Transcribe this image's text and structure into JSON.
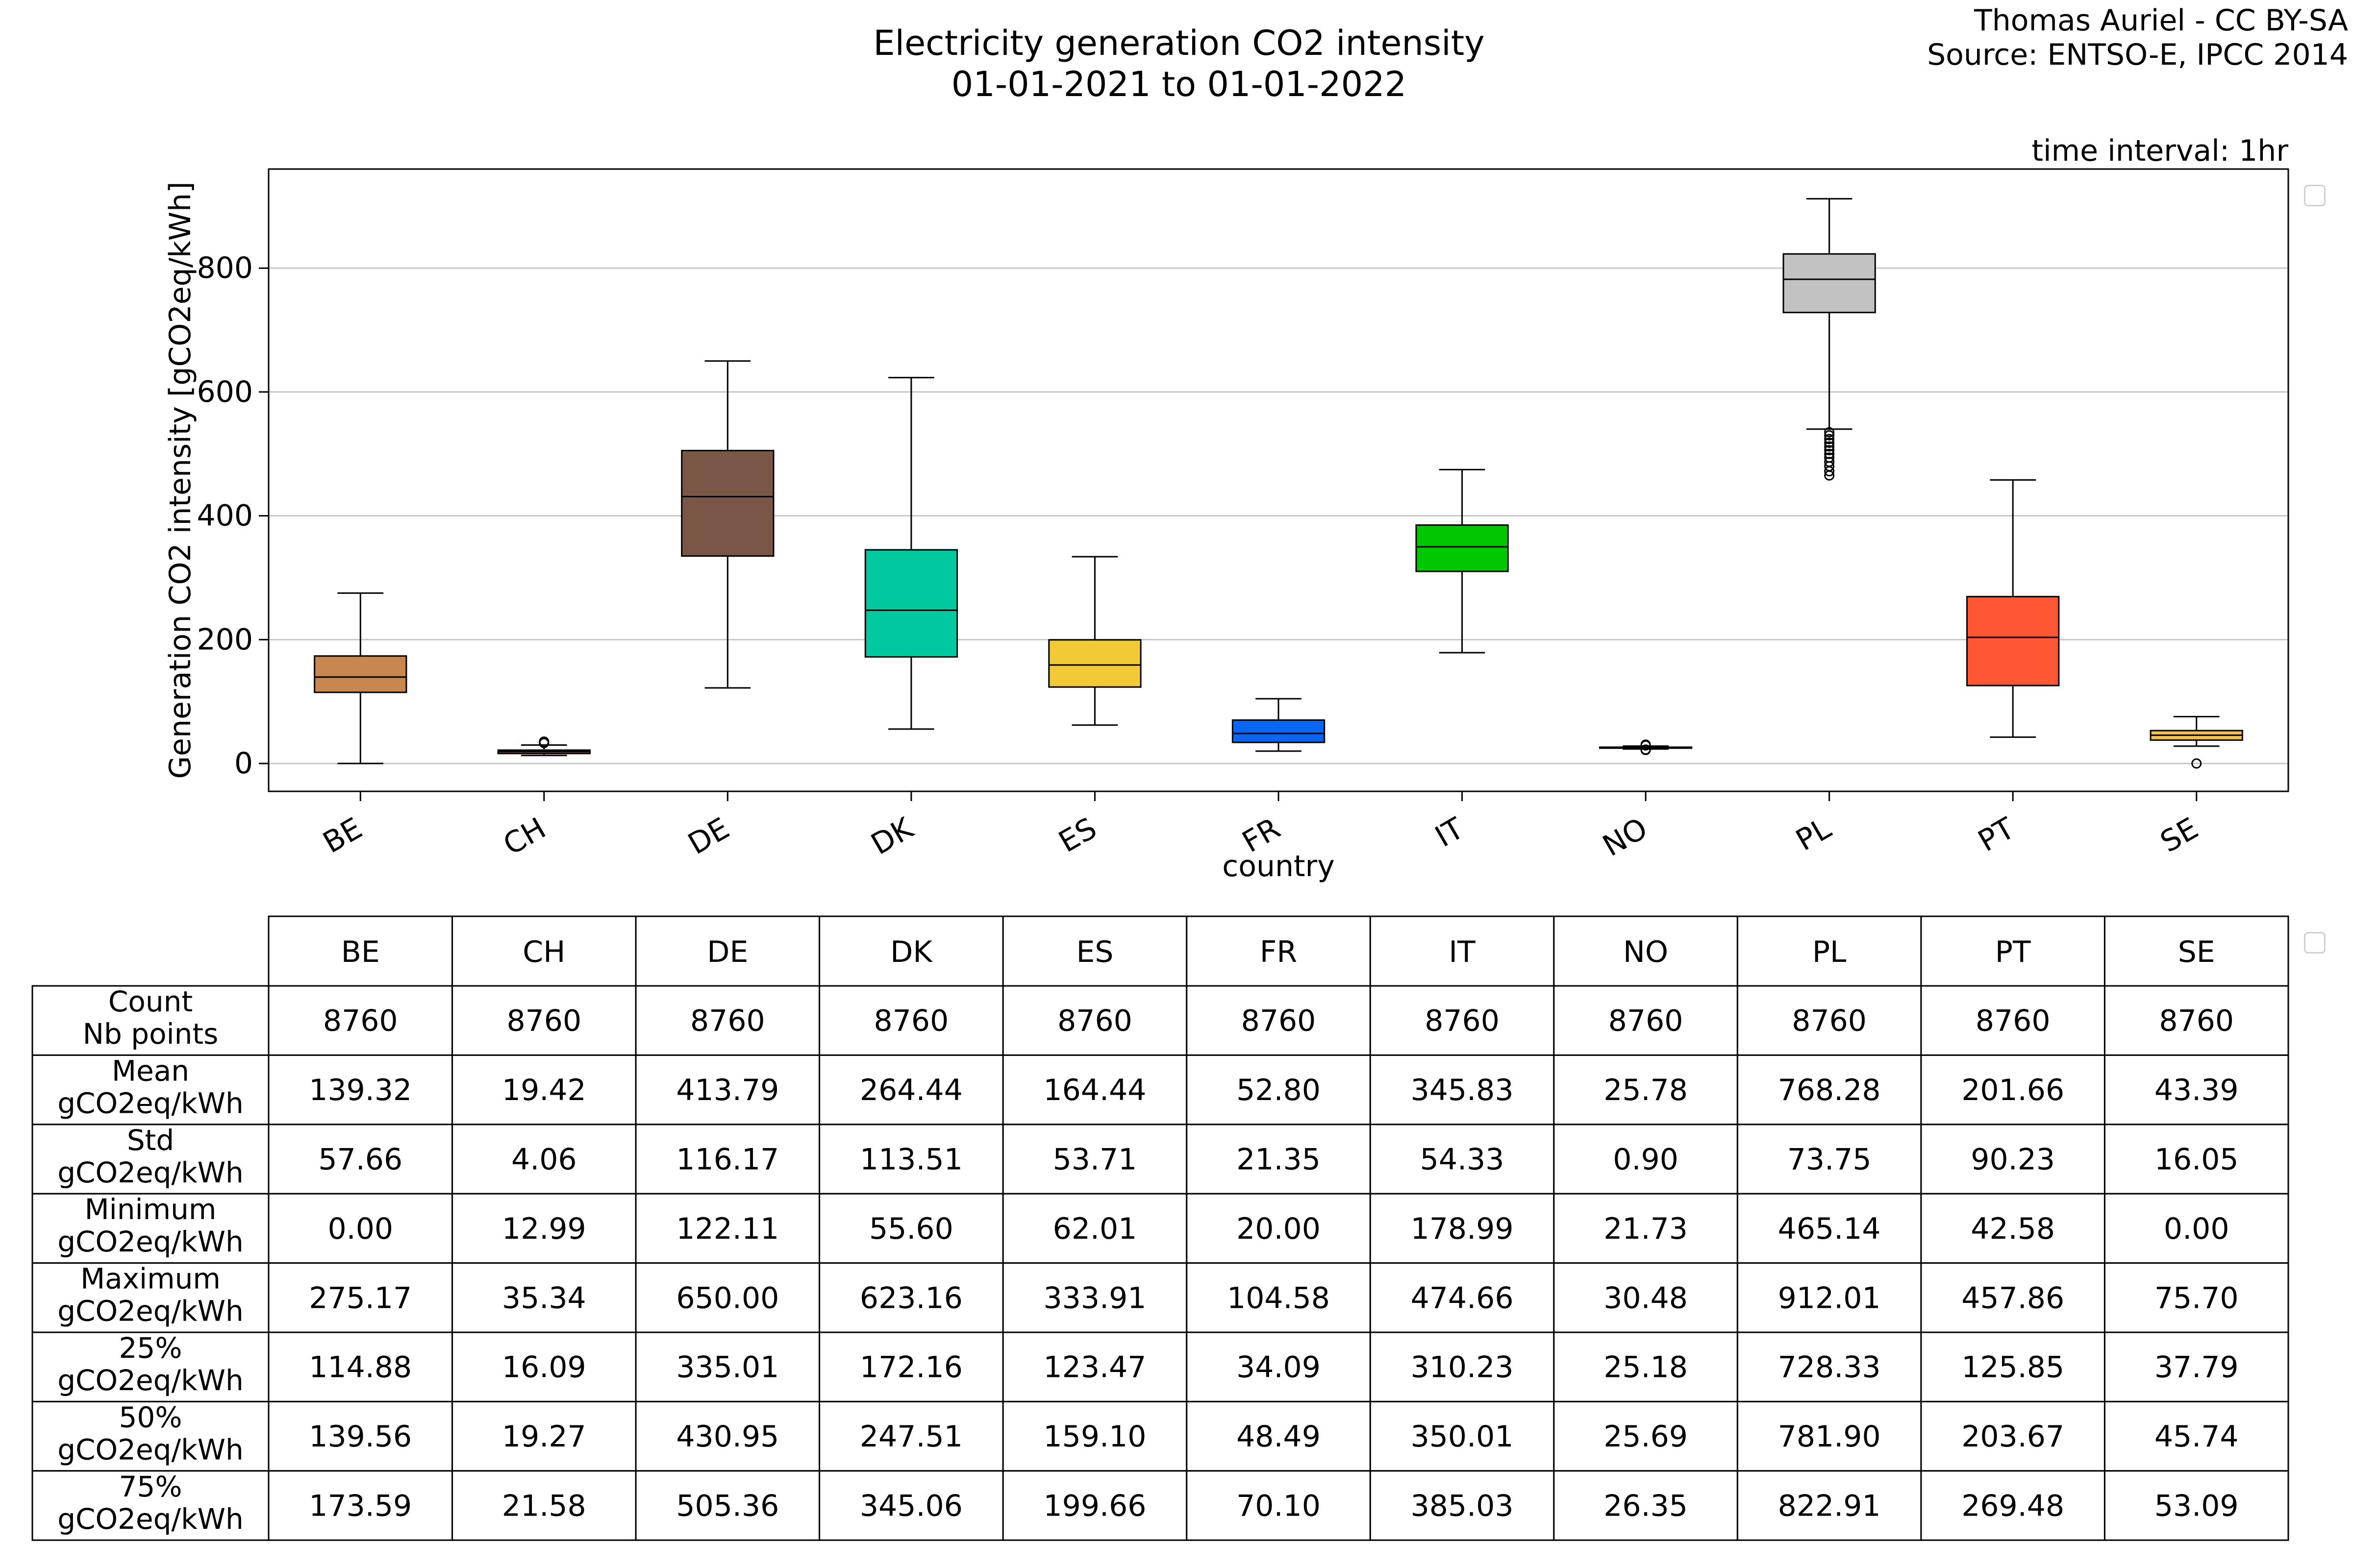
{
  "header": {
    "title_line1": "Electricity generation CO2 intensity",
    "title_line2": "01-01-2021 to 01-01-2022",
    "credit_line1": "Thomas Auriel - CC BY-SA",
    "credit_line2": "Source: ENTSO-E, IPCC 2014",
    "time_interval": "time interval: 1hr"
  },
  "chart_data": [
    {
      "type": "box",
      "xlabel": "country",
      "ylabel": "Generation CO2 intensity [gCO2eq/kWh]",
      "ylim": [
        -45,
        960
      ],
      "yticks": [
        0,
        200,
        400,
        600,
        800
      ],
      "grid": "horizontal",
      "categories": [
        "BE",
        "CH",
        "DE",
        "DK",
        "ES",
        "FR",
        "IT",
        "NO",
        "PL",
        "PT",
        "SE"
      ],
      "colors": [
        "#c8874f",
        "#c0392b",
        "#7a5646",
        "#00c9a0",
        "#f2c936",
        "#0a66f2",
        "#00c800",
        "#9a9a9a",
        "#c2c2c2",
        "#ff5733",
        "#f0c050"
      ],
      "boxes": [
        {
          "country": "BE",
          "whisker_low": 0.0,
          "q1": 114.88,
          "median": 139.56,
          "q3": 173.59,
          "whisker_high": 275.17,
          "outliers": []
        },
        {
          "country": "CH",
          "whisker_low": 12.99,
          "q1": 16.09,
          "median": 19.27,
          "q3": 21.58,
          "whisker_high": 29.8,
          "outliers": [
            33.0,
            35.34
          ]
        },
        {
          "country": "DE",
          "whisker_low": 122.11,
          "q1": 335.01,
          "median": 430.95,
          "q3": 505.36,
          "whisker_high": 650.0,
          "outliers": []
        },
        {
          "country": "DK",
          "whisker_low": 55.6,
          "q1": 172.16,
          "median": 247.51,
          "q3": 345.06,
          "whisker_high": 623.16,
          "outliers": []
        },
        {
          "country": "ES",
          "whisker_low": 62.01,
          "q1": 123.47,
          "median": 159.1,
          "q3": 199.66,
          "whisker_high": 333.91,
          "outliers": []
        },
        {
          "country": "FR",
          "whisker_low": 20.0,
          "q1": 34.09,
          "median": 48.49,
          "q3": 70.1,
          "whisker_high": 104.58,
          "outliers": []
        },
        {
          "country": "IT",
          "whisker_low": 178.99,
          "q1": 310.23,
          "median": 350.01,
          "q3": 385.03,
          "whisker_high": 474.66,
          "outliers": []
        },
        {
          "country": "NO",
          "whisker_low": 23.4,
          "q1": 25.18,
          "median": 25.69,
          "q3": 26.35,
          "whisker_high": 28.1,
          "outliers": [
            21.73,
            22.5,
            29.2,
            30.48
          ]
        },
        {
          "country": "PL",
          "whisker_low": 540,
          "q1": 728.33,
          "median": 781.9,
          "q3": 822.91,
          "whisker_high": 912.01,
          "outliers": [
            465.14,
            472,
            480,
            487,
            494,
            500,
            506,
            512,
            518,
            524,
            530,
            535
          ]
        },
        {
          "country": "PT",
          "whisker_low": 42.58,
          "q1": 125.85,
          "median": 203.67,
          "q3": 269.48,
          "whisker_high": 457.86,
          "outliers": []
        },
        {
          "country": "SE",
          "whisker_low": 28.0,
          "q1": 37.79,
          "median": 45.74,
          "q3": 53.09,
          "whisker_high": 75.7,
          "outliers": [
            0.0
          ]
        }
      ]
    },
    {
      "type": "table",
      "columns": [
        "BE",
        "CH",
        "DE",
        "DK",
        "ES",
        "FR",
        "IT",
        "NO",
        "PL",
        "PT",
        "SE"
      ],
      "rows": [
        {
          "label_line1": "Count",
          "label_line2": "Nb points",
          "values": [
            "8760",
            "8760",
            "8760",
            "8760",
            "8760",
            "8760",
            "8760",
            "8760",
            "8760",
            "8760",
            "8760"
          ]
        },
        {
          "label_line1": "Mean",
          "label_line2": "gCO2eq/kWh",
          "values": [
            "139.32",
            "19.42",
            "413.79",
            "264.44",
            "164.44",
            "52.80",
            "345.83",
            "25.78",
            "768.28",
            "201.66",
            "43.39"
          ]
        },
        {
          "label_line1": "Std",
          "label_line2": "gCO2eq/kWh",
          "values": [
            "57.66",
            "4.06",
            "116.17",
            "113.51",
            "53.71",
            "21.35",
            "54.33",
            "0.90",
            "73.75",
            "90.23",
            "16.05"
          ]
        },
        {
          "label_line1": "Minimum",
          "label_line2": "gCO2eq/kWh",
          "values": [
            "0.00",
            "12.99",
            "122.11",
            "55.60",
            "62.01",
            "20.00",
            "178.99",
            "21.73",
            "465.14",
            "42.58",
            "0.00"
          ]
        },
        {
          "label_line1": "Maximum",
          "label_line2": "gCO2eq/kWh",
          "values": [
            "275.17",
            "35.34",
            "650.00",
            "623.16",
            "333.91",
            "104.58",
            "474.66",
            "30.48",
            "912.01",
            "457.86",
            "75.70"
          ]
        },
        {
          "label_line1": "25%",
          "label_line2": "gCO2eq/kWh",
          "values": [
            "114.88",
            "16.09",
            "335.01",
            "172.16",
            "123.47",
            "34.09",
            "310.23",
            "25.18",
            "728.33",
            "125.85",
            "37.79"
          ]
        },
        {
          "label_line1": "50%",
          "label_line2": "gCO2eq/kWh",
          "values": [
            "139.56",
            "19.27",
            "430.95",
            "247.51",
            "159.10",
            "48.49",
            "350.01",
            "25.69",
            "781.90",
            "203.67",
            "45.74"
          ]
        },
        {
          "label_line1": "75%",
          "label_line2": "gCO2eq/kWh",
          "values": [
            "173.59",
            "21.58",
            "505.36",
            "345.06",
            "199.66",
            "70.10",
            "385.03",
            "26.35",
            "822.91",
            "269.48",
            "53.09"
          ]
        }
      ]
    }
  ]
}
